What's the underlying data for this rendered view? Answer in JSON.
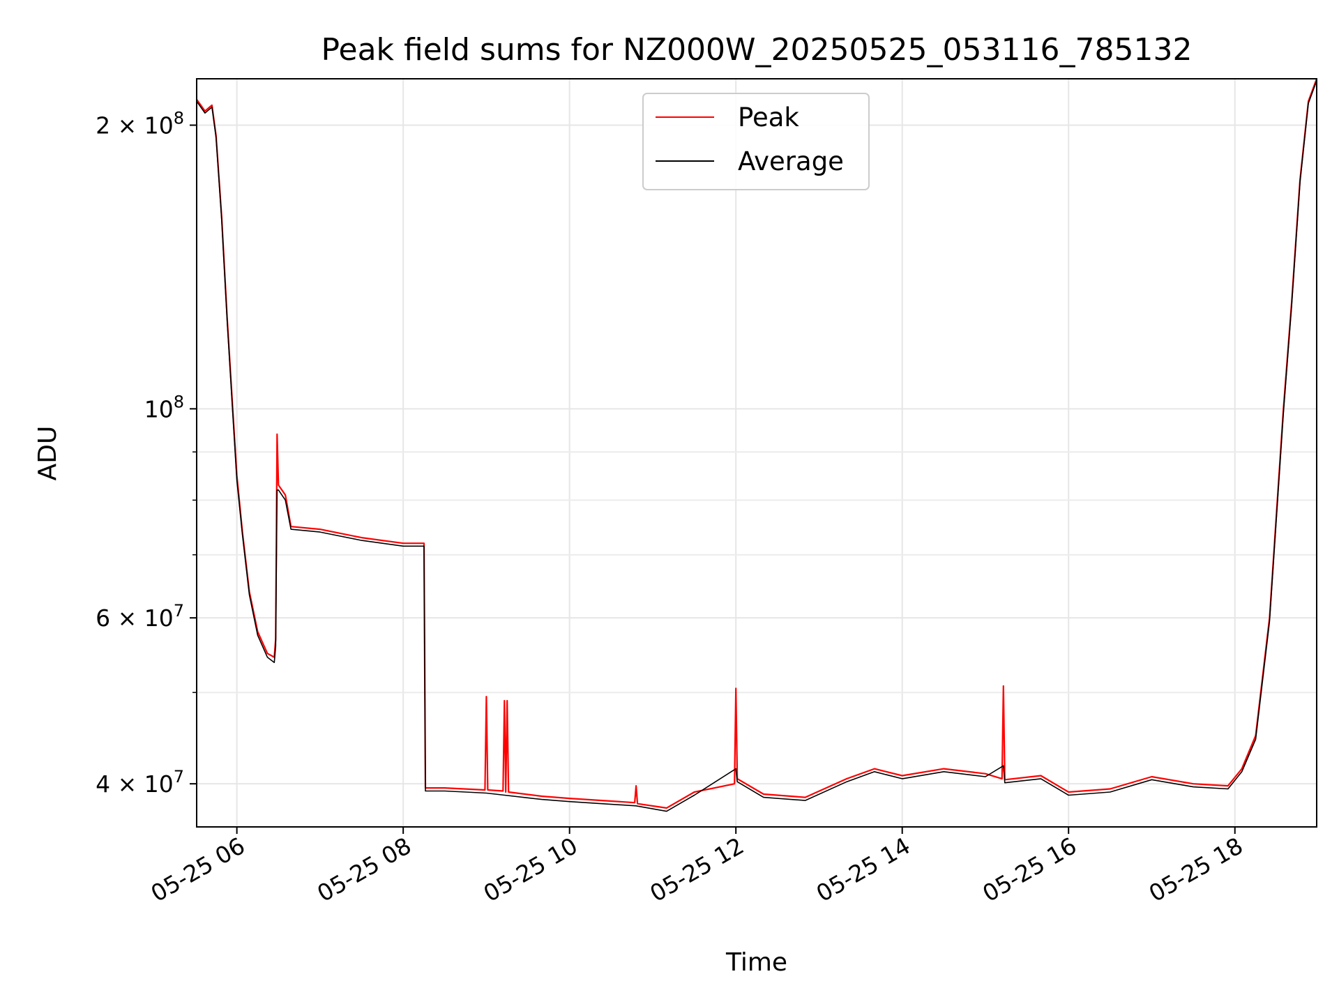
{
  "chart_data": {
    "type": "line",
    "title": "Peak field sums for NZ000W_20250525_053116_785132",
    "xlabel": "Time",
    "ylabel": "ADU",
    "yscale": "log",
    "grid": true,
    "legend_position": "top-center",
    "xlim": [
      "2025-05-25 05:31",
      "2025-05-25 18:59"
    ],
    "ylim": [
      36000000,
      224000000
    ],
    "x_ticks": [
      {
        "value": "2025-05-25 06:00",
        "label": "05-25 06"
      },
      {
        "value": "2025-05-25 08:00",
        "label": "05-25 08"
      },
      {
        "value": "2025-05-25 10:00",
        "label": "05-25 10"
      },
      {
        "value": "2025-05-25 12:00",
        "label": "05-25 12"
      },
      {
        "value": "2025-05-25 14:00",
        "label": "05-25 14"
      },
      {
        "value": "2025-05-25 16:00",
        "label": "05-25 16"
      },
      {
        "value": "2025-05-25 18:00",
        "label": "05-25 18"
      }
    ],
    "y_ticks": [
      {
        "value": 40000000,
        "mant": "4",
        "exp": "7"
      },
      {
        "value": 60000000,
        "mant": "6",
        "exp": "7"
      },
      {
        "value": 100000000,
        "mant": "",
        "exp": "8"
      },
      {
        "value": 200000000,
        "mant": "2",
        "exp": "8"
      }
    ],
    "y_minor_ticks": [
      50000000,
      70000000,
      80000000,
      90000000
    ],
    "series": [
      {
        "name": "Peak",
        "color": "#ff0000",
        "points": [
          [
            "2025-05-25 05:31",
            213000000
          ],
          [
            "2025-05-25 05:37",
            207000000
          ],
          [
            "2025-05-25 05:42",
            210000000
          ],
          [
            "2025-05-25 05:45",
            195000000
          ],
          [
            "2025-05-25 05:49",
            160000000
          ],
          [
            "2025-05-25 05:53",
            125000000
          ],
          [
            "2025-05-25 05:57",
            100000000
          ],
          [
            "2025-05-25 06:00",
            85000000
          ],
          [
            "2025-05-25 06:04",
            74000000
          ],
          [
            "2025-05-25 06:09",
            64000000
          ],
          [
            "2025-05-25 06:15",
            58000000
          ],
          [
            "2025-05-25 06:22",
            55000000
          ],
          [
            "2025-05-25 06:27",
            54500000
          ],
          [
            "2025-05-25 06:28",
            57000000
          ],
          [
            "2025-05-25 06:29",
            94000000
          ],
          [
            "2025-05-25 06:30",
            83000000
          ],
          [
            "2025-05-25 06:35",
            81000000
          ],
          [
            "2025-05-25 06:39",
            75000000
          ],
          [
            "2025-05-25 07:00",
            74500000
          ],
          [
            "2025-05-25 07:30",
            73000000
          ],
          [
            "2025-05-25 08:00",
            72000000
          ],
          [
            "2025-05-25 08:15",
            72000000
          ],
          [
            "2025-05-25 08:16",
            39600000
          ],
          [
            "2025-05-25 08:30",
            39600000
          ],
          [
            "2025-05-25 08:59",
            39400000
          ],
          [
            "2025-05-25 09:00",
            49500000
          ],
          [
            "2025-05-25 09:01",
            39400000
          ],
          [
            "2025-05-25 09:12",
            39300000
          ],
          [
            "2025-05-25 09:13",
            49000000
          ],
          [
            "2025-05-25 09:14",
            39200000
          ],
          [
            "2025-05-25 09:15",
            49000000
          ],
          [
            "2025-05-25 09:16",
            39200000
          ],
          [
            "2025-05-25 09:40",
            38800000
          ],
          [
            "2025-05-25 10:00",
            38600000
          ],
          [
            "2025-05-25 10:47",
            38200000
          ],
          [
            "2025-05-25 10:48",
            39800000
          ],
          [
            "2025-05-25 10:49",
            38100000
          ],
          [
            "2025-05-25 11:10",
            37700000
          ],
          [
            "2025-05-25 11:30",
            39200000
          ],
          [
            "2025-05-25 11:59",
            40000000
          ],
          [
            "2025-05-25 12:00",
            50500000
          ],
          [
            "2025-05-25 12:01",
            40500000
          ],
          [
            "2025-05-25 12:20",
            39000000
          ],
          [
            "2025-05-25 12:50",
            38700000
          ],
          [
            "2025-05-25 13:20",
            40500000
          ],
          [
            "2025-05-25 13:40",
            41500000
          ],
          [
            "2025-05-25 14:00",
            40800000
          ],
          [
            "2025-05-25 14:30",
            41500000
          ],
          [
            "2025-05-25 15:00",
            41000000
          ],
          [
            "2025-05-25 15:12",
            40500000
          ],
          [
            "2025-05-25 15:13",
            50800000
          ],
          [
            "2025-05-25 15:14",
            40400000
          ],
          [
            "2025-05-25 15:40",
            40800000
          ],
          [
            "2025-05-25 16:00",
            39200000
          ],
          [
            "2025-05-25 16:30",
            39500000
          ],
          [
            "2025-05-25 17:00",
            40700000
          ],
          [
            "2025-05-25 17:30",
            40000000
          ],
          [
            "2025-05-25 17:55",
            39800000
          ],
          [
            "2025-05-25 18:05",
            41500000
          ],
          [
            "2025-05-25 18:15",
            45000000
          ],
          [
            "2025-05-25 18:25",
            60000000
          ],
          [
            "2025-05-25 18:35",
            100000000
          ],
          [
            "2025-05-25 18:41",
            130000000
          ],
          [
            "2025-05-25 18:47",
            175000000
          ],
          [
            "2025-05-25 18:53",
            212000000
          ],
          [
            "2025-05-25 18:59",
            224000000
          ]
        ]
      },
      {
        "name": "Average",
        "color": "#000000",
        "points": [
          [
            "2025-05-25 05:31",
            212000000
          ],
          [
            "2025-05-25 05:37",
            206000000
          ],
          [
            "2025-05-25 05:42",
            209000000
          ],
          [
            "2025-05-25 05:45",
            194000000
          ],
          [
            "2025-05-25 05:49",
            159000000
          ],
          [
            "2025-05-25 05:53",
            124000000
          ],
          [
            "2025-05-25 05:57",
            99000000
          ],
          [
            "2025-05-25 06:00",
            84000000
          ],
          [
            "2025-05-25 06:04",
            73500000
          ],
          [
            "2025-05-25 06:09",
            63500000
          ],
          [
            "2025-05-25 06:15",
            57500000
          ],
          [
            "2025-05-25 06:22",
            54500000
          ],
          [
            "2025-05-25 06:27",
            53800000
          ],
          [
            "2025-05-25 06:28",
            56000000
          ],
          [
            "2025-05-25 06:29",
            82000000
          ],
          [
            "2025-05-25 06:30",
            82000000
          ],
          [
            "2025-05-25 06:35",
            80000000
          ],
          [
            "2025-05-25 06:39",
            74500000
          ],
          [
            "2025-05-25 07:00",
            74000000
          ],
          [
            "2025-05-25 07:30",
            72500000
          ],
          [
            "2025-05-25 08:00",
            71500000
          ],
          [
            "2025-05-25 08:15",
            71500000
          ],
          [
            "2025-05-25 08:16",
            39300000
          ],
          [
            "2025-05-25 08:30",
            39300000
          ],
          [
            "2025-05-25 09:00",
            39100000
          ],
          [
            "2025-05-25 09:40",
            38500000
          ],
          [
            "2025-05-25 10:00",
            38300000
          ],
          [
            "2025-05-25 10:48",
            37900000
          ],
          [
            "2025-05-25 11:10",
            37400000
          ],
          [
            "2025-05-25 11:30",
            38900000
          ],
          [
            "2025-05-25 12:00",
            41500000
          ],
          [
            "2025-05-25 12:01",
            40200000
          ],
          [
            "2025-05-25 12:20",
            38700000
          ],
          [
            "2025-05-25 12:50",
            38400000
          ],
          [
            "2025-05-25 13:20",
            40200000
          ],
          [
            "2025-05-25 13:40",
            41200000
          ],
          [
            "2025-05-25 14:00",
            40500000
          ],
          [
            "2025-05-25 14:30",
            41200000
          ],
          [
            "2025-05-25 15:00",
            40700000
          ],
          [
            "2025-05-25 15:13",
            41800000
          ],
          [
            "2025-05-25 15:14",
            40100000
          ],
          [
            "2025-05-25 15:40",
            40500000
          ],
          [
            "2025-05-25 16:00",
            38900000
          ],
          [
            "2025-05-25 16:30",
            39200000
          ],
          [
            "2025-05-25 17:00",
            40400000
          ],
          [
            "2025-05-25 17:30",
            39700000
          ],
          [
            "2025-05-25 17:55",
            39500000
          ],
          [
            "2025-05-25 18:05",
            41200000
          ],
          [
            "2025-05-25 18:15",
            44600000
          ],
          [
            "2025-05-25 18:25",
            59500000
          ],
          [
            "2025-05-25 18:35",
            99000000
          ],
          [
            "2025-05-25 18:41",
            129000000
          ],
          [
            "2025-05-25 18:47",
            174000000
          ],
          [
            "2025-05-25 18:53",
            211000000
          ],
          [
            "2025-05-25 18:59",
            223000000
          ]
        ]
      }
    ]
  }
}
